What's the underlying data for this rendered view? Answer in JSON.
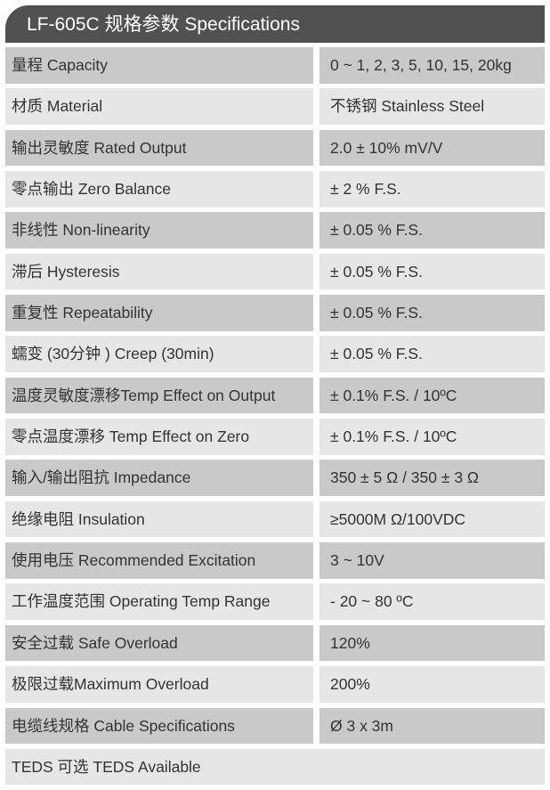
{
  "title": "LF-605C 规格参数 Specifications",
  "colors": {
    "header": "#515151",
    "row_dark": "#c9c9c9",
    "row_light": "#e6e6e6"
  },
  "rows": [
    {
      "label": "量程 Capacity",
      "value": "0 ~ 1, 2, 3, 5, 10, 15, 20kg"
    },
    {
      "label": "材质 Material",
      "value": "不锈钢 Stainless Steel"
    },
    {
      "label": "输出灵敏度 Rated Output",
      "value": "2.0 ± 10% mV/V"
    },
    {
      "label": "零点输出  Zero Balance",
      "value": "± 2 % F.S."
    },
    {
      "label": "非线性 Non-linearity",
      "value": "± 0.05 % F.S."
    },
    {
      "label": "滞后 Hysteresis",
      "value": "± 0.05 % F.S."
    },
    {
      "label": "重复性 Repeatability",
      "value": "± 0.05 % F.S."
    },
    {
      "label": "蠕变 (30分钟 ) Creep (30min)",
      "value": "± 0.05 % F.S."
    },
    {
      "label": "温度灵敏度漂移Temp Effect on Output",
      "value": "± 0.1% F.S. / 10ºC"
    },
    {
      "label": "零点温度漂移 Temp Effect on Zero",
      "value": "± 0.1% F.S. / 10ºC"
    },
    {
      "label": "输入/输出阻抗 Impedance",
      "value": "350 ± 5 Ω  / 350 ± 3 Ω"
    },
    {
      "label": "绝缘电阻  Insulation",
      "value": "≥5000M Ω/100VDC"
    },
    {
      "label": "使用电压 Recommended Excitation",
      "value": "3 ~ 10V"
    },
    {
      "label": "工作温度范围 Operating Temp  Range",
      "value": "- 20 ~ 80 ºC"
    },
    {
      "label": "安全过载 Safe Overload",
      "value": "120%"
    },
    {
      "label": "极限过载Maximum Overload",
      "value": "200%"
    },
    {
      "label": "电缆线规格 Cable Specifications",
      "value": "Ø 3 x 3m"
    }
  ],
  "footer_row": "TEDS 可选 TEDS Available"
}
